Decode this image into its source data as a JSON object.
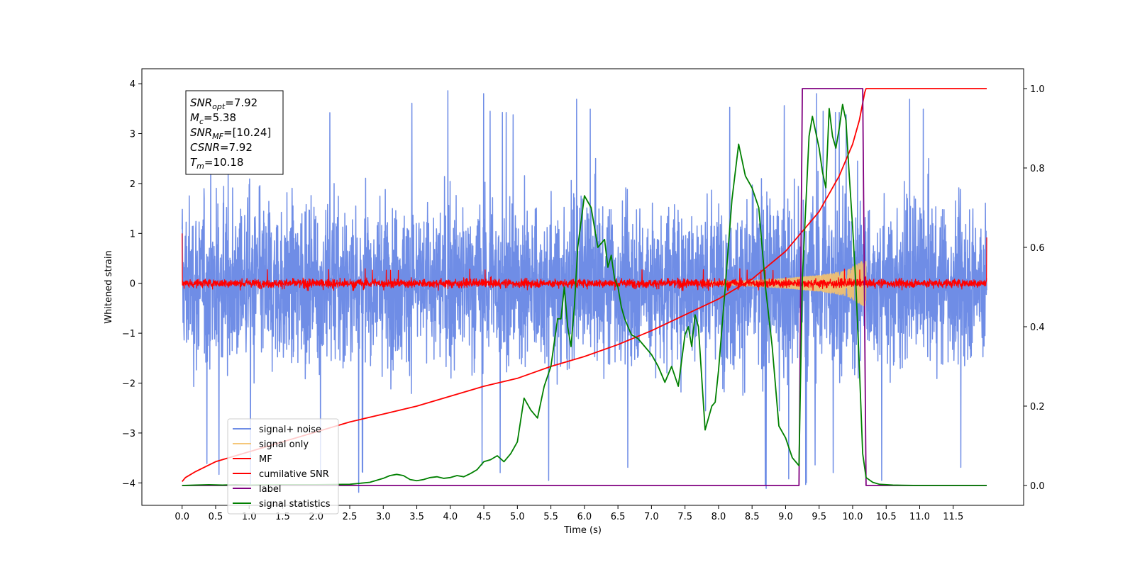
{
  "chart_data": {
    "type": "line",
    "xlabel": "Time (s)",
    "ylabel": "Whitened strain",
    "xlim": [
      -0.6,
      12.55
    ],
    "ylim": [
      -4.45,
      4.3
    ],
    "y2lim": [
      -0.05,
      1.05
    ],
    "xticks": [
      0.0,
      0.5,
      1.0,
      1.5,
      2.0,
      2.5,
      3.0,
      3.5,
      4.0,
      4.5,
      5.0,
      5.5,
      6.0,
      6.5,
      7.0,
      7.5,
      8.0,
      8.5,
      9.0,
      9.5,
      10.0,
      10.5,
      11.0,
      11.5
    ],
    "xtick_labels": [
      "0.0",
      "0.5",
      "1.0",
      "1.5",
      "2.0",
      "2.5",
      "3.0",
      "3.5",
      "4.0",
      "4.5",
      "5.0",
      "5.5",
      "6.0",
      "6.5",
      "7.0",
      "7.5",
      "8.0",
      "8.5",
      "9.0",
      "9.5",
      "10.0",
      "10.5",
      "11.0",
      "11.5"
    ],
    "yticks": [
      -4,
      -3,
      -2,
      -1,
      0,
      1,
      2,
      3,
      4
    ],
    "ytick_labels": [
      "−4",
      "−3",
      "−2",
      "−1",
      "0",
      "1",
      "2",
      "3",
      "4"
    ],
    "y2ticks": [
      0.0,
      0.2,
      0.4,
      0.6,
      0.8,
      1.0
    ],
    "y2tick_labels": [
      "0.0",
      "0.2",
      "0.4",
      "0.6",
      "0.8",
      "1.0"
    ],
    "grid": false,
    "legend_position": "lower-left",
    "series": [
      {
        "name": "signal+ noise",
        "color": "#6f8de6",
        "axis": "left",
        "style": "noise",
        "x_range": [
          0.0,
          12.0
        ],
        "envelope": [
          [
            0.0,
            2.3
          ],
          [
            1.0,
            2.3
          ],
          [
            2.0,
            2.2
          ],
          [
            3.0,
            2.2
          ],
          [
            4.0,
            2.2
          ],
          [
            5.0,
            2.3
          ],
          [
            6.0,
            2.2
          ],
          [
            7.0,
            2.2
          ],
          [
            8.0,
            2.3
          ],
          [
            9.0,
            2.4
          ],
          [
            9.5,
            2.5
          ],
          [
            10.0,
            2.6
          ],
          [
            10.2,
            2.6
          ],
          [
            10.21,
            2.2
          ],
          [
            12.0,
            2.2
          ]
        ],
        "extremes_max": 3.9,
        "extremes_min": -4.2
      },
      {
        "name": "signal only",
        "color": "#f5c26b",
        "axis": "left",
        "style": "chirp",
        "x_range": [
          7.8,
          10.2
        ],
        "envelope": [
          [
            7.8,
            0.03
          ],
          [
            8.5,
            0.06
          ],
          [
            9.0,
            0.1
          ],
          [
            9.5,
            0.16
          ],
          [
            9.9,
            0.25
          ],
          [
            10.15,
            0.45
          ],
          [
            10.2,
            0.45
          ]
        ]
      },
      {
        "name": "MF",
        "color": "#ff0000",
        "axis": "left",
        "style": "noise",
        "x_range": [
          0.0,
          12.0
        ],
        "envelope": [
          [
            0.0,
            0.12
          ],
          [
            12.0,
            0.12
          ]
        ],
        "extremes_max": 0.3,
        "extremes_min": -0.15,
        "end_spikes": [
          [
            0.0,
            1.0
          ],
          [
            12.0,
            0.92
          ]
        ]
      },
      {
        "name": "cumilative SNR",
        "color": "#ff0000",
        "axis": "right",
        "x": [
          0.0,
          0.05,
          0.2,
          0.5,
          1.0,
          1.5,
          2.0,
          2.5,
          3.0,
          3.5,
          4.0,
          4.5,
          5.0,
          5.5,
          6.0,
          6.5,
          7.0,
          7.5,
          8.0,
          8.5,
          9.0,
          9.5,
          9.8,
          10.0,
          10.1,
          10.18,
          10.2,
          12.0
        ],
        "y": [
          0.01,
          0.02,
          0.035,
          0.06,
          0.085,
          0.11,
          0.135,
          0.16,
          0.18,
          0.2,
          0.225,
          0.25,
          0.27,
          0.3,
          0.325,
          0.355,
          0.39,
          0.43,
          0.47,
          0.52,
          0.59,
          0.69,
          0.78,
          0.86,
          0.92,
          0.99,
          1.0,
          1.0
        ]
      },
      {
        "name": "label",
        "color": "#800080",
        "axis": "right",
        "x": [
          0.0,
          9.2,
          9.25,
          10.15,
          10.2,
          12.0
        ],
        "y": [
          0.0,
          0.0,
          1.0,
          1.0,
          0.0,
          0.0
        ]
      },
      {
        "name": "signal statistics",
        "color": "#008000",
        "axis": "right",
        "x": [
          0.0,
          0.2,
          0.4,
          0.6,
          0.8,
          1.0,
          1.5,
          2.0,
          2.5,
          2.8,
          3.0,
          3.1,
          3.2,
          3.3,
          3.4,
          3.5,
          3.6,
          3.7,
          3.8,
          3.9,
          4.0,
          4.1,
          4.2,
          4.3,
          4.4,
          4.5,
          4.6,
          4.7,
          4.8,
          4.9,
          5.0,
          5.1,
          5.2,
          5.3,
          5.4,
          5.5,
          5.6,
          5.65,
          5.7,
          5.75,
          5.8,
          5.85,
          5.9,
          6.0,
          6.1,
          6.2,
          6.3,
          6.35,
          6.4,
          6.45,
          6.5,
          6.55,
          6.6,
          6.7,
          6.8,
          6.9,
          7.0,
          7.1,
          7.2,
          7.3,
          7.4,
          7.5,
          7.55,
          7.6,
          7.65,
          7.7,
          7.8,
          7.9,
          7.95,
          8.0,
          8.1,
          8.2,
          8.3,
          8.4,
          8.5,
          8.6,
          8.7,
          8.8,
          8.9,
          9.0,
          9.1,
          9.2,
          9.25,
          9.3,
          9.35,
          9.4,
          9.45,
          9.5,
          9.55,
          9.6,
          9.65,
          9.7,
          9.75,
          9.8,
          9.85,
          9.9,
          9.95,
          10.0,
          10.05,
          10.1,
          10.15,
          10.2,
          10.3,
          10.4,
          10.6,
          11.0,
          12.0
        ],
        "y": [
          0.0,
          0.001,
          0.002,
          0.001,
          0.002,
          0.001,
          0.002,
          0.002,
          0.003,
          0.008,
          0.018,
          0.025,
          0.028,
          0.025,
          0.015,
          0.012,
          0.015,
          0.02,
          0.022,
          0.018,
          0.02,
          0.025,
          0.022,
          0.03,
          0.04,
          0.06,
          0.065,
          0.075,
          0.06,
          0.08,
          0.11,
          0.22,
          0.19,
          0.17,
          0.25,
          0.3,
          0.42,
          0.42,
          0.5,
          0.4,
          0.35,
          0.45,
          0.6,
          0.73,
          0.7,
          0.6,
          0.62,
          0.55,
          0.58,
          0.52,
          0.5,
          0.45,
          0.42,
          0.38,
          0.37,
          0.35,
          0.33,
          0.3,
          0.26,
          0.3,
          0.25,
          0.38,
          0.4,
          0.35,
          0.43,
          0.4,
          0.14,
          0.2,
          0.21,
          0.29,
          0.5,
          0.72,
          0.86,
          0.78,
          0.75,
          0.7,
          0.5,
          0.35,
          0.15,
          0.12,
          0.07,
          0.05,
          0.52,
          0.7,
          0.88,
          0.93,
          0.89,
          0.85,
          0.79,
          0.75,
          0.95,
          0.88,
          0.85,
          0.9,
          0.96,
          0.92,
          0.78,
          0.65,
          0.5,
          0.3,
          0.08,
          0.02,
          0.008,
          0.003,
          0.001,
          0.0,
          0.0
        ]
      }
    ],
    "annotation_lines": [
      {
        "main": "SNR",
        "sub": "opt",
        "rest": "=7.92"
      },
      {
        "main": "M",
        "sub": "c",
        "rest": "=5.38"
      },
      {
        "main": "SNR",
        "sub": "MF",
        "rest": "=[10.24]"
      },
      {
        "main": "CSNR",
        "sub": "",
        "rest": "=7.92"
      },
      {
        "main": "T",
        "sub": "m",
        "rest": "=10.18"
      }
    ]
  }
}
